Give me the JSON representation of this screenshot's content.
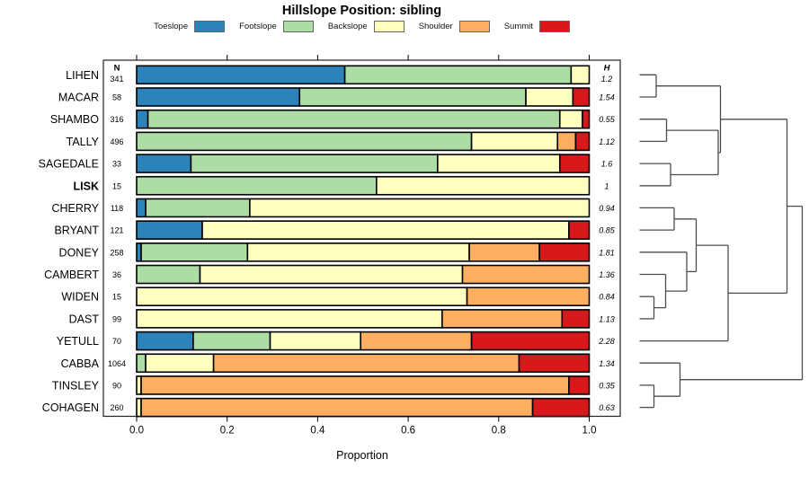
{
  "title": "Hillslope Position: sibling",
  "legend": {
    "items": [
      {
        "label": "Toeslope",
        "color": "#2B83BA"
      },
      {
        "label": "Footslope",
        "color": "#ABDDA4"
      },
      {
        "label": "Backslope",
        "color": "#FFFFBF"
      },
      {
        "label": "Shoulder",
        "color": "#FDAE61"
      },
      {
        "label": "Summit",
        "color": "#D7191C"
      }
    ]
  },
  "chart_data": {
    "type": "bar",
    "variant": "horizontal-stacked-proportion",
    "title": "Hillslope Position: sibling",
    "xlabel": "Proportion",
    "xlim": [
      0,
      1
    ],
    "xticks": [
      0,
      0.2,
      0.4,
      0.6,
      0.8,
      1.0
    ],
    "grid": false,
    "legend_position": "top",
    "n_header": "N",
    "h_header": "H",
    "positions": [
      "Toeslope",
      "Footslope",
      "Backslope",
      "Shoulder",
      "Summit"
    ],
    "colors": [
      "#2B83BA",
      "#ABDDA4",
      "#FFFFBF",
      "#FDAE61",
      "#D7191C"
    ],
    "rows": [
      {
        "name": "LIHEN",
        "bold": false,
        "n": "341",
        "h": "1.2",
        "values": [
          0.46,
          0.5,
          0.04,
          0,
          0
        ]
      },
      {
        "name": "MACAR",
        "bold": false,
        "n": "58",
        "h": "1.54",
        "values": [
          0.36,
          0.5,
          0.104,
          0,
          0.036
        ]
      },
      {
        "name": "SHAMBO",
        "bold": false,
        "n": "316",
        "h": "0.55",
        "values": [
          0.025,
          0.91,
          0.05,
          0,
          0.015
        ]
      },
      {
        "name": "TALLY",
        "bold": false,
        "n": "496",
        "h": "1.12",
        "values": [
          0,
          0.74,
          0.19,
          0.04,
          0.03
        ]
      },
      {
        "name": "SAGEDALE",
        "bold": false,
        "n": "33",
        "h": "1.6",
        "values": [
          0.12,
          0.545,
          0.27,
          0,
          0.065
        ]
      },
      {
        "name": "LISK",
        "bold": true,
        "n": "15",
        "h": "1",
        "values": [
          0,
          0.53,
          0.47,
          0,
          0
        ]
      },
      {
        "name": "CHERRY",
        "bold": false,
        "n": "118",
        "h": "0.94",
        "values": [
          0.02,
          0.23,
          0.75,
          0,
          0
        ]
      },
      {
        "name": "BRYANT",
        "bold": false,
        "n": "121",
        "h": "0.85",
        "values": [
          0.145,
          0,
          0.81,
          0,
          0.045
        ]
      },
      {
        "name": "DONEY",
        "bold": false,
        "n": "258",
        "h": "1.81",
        "values": [
          0.01,
          0.235,
          0.49,
          0.155,
          0.11
        ]
      },
      {
        "name": "CAMBERT",
        "bold": false,
        "n": "36",
        "h": "1.36",
        "values": [
          0,
          0.14,
          0.58,
          0.28,
          0
        ]
      },
      {
        "name": "WIDEN",
        "bold": false,
        "n": "15",
        "h": "0.84",
        "values": [
          0,
          0,
          0.73,
          0.27,
          0
        ]
      },
      {
        "name": "DAST",
        "bold": false,
        "n": "99",
        "h": "1.13",
        "values": [
          0,
          0,
          0.675,
          0.265,
          0.06
        ]
      },
      {
        "name": "YETULL",
        "bold": false,
        "n": "70",
        "h": "2.28",
        "values": [
          0.125,
          0.17,
          0.2,
          0.245,
          0.26
        ]
      },
      {
        "name": "CABBA",
        "bold": false,
        "n": "1064",
        "h": "1.34",
        "values": [
          0,
          0.02,
          0.15,
          0.675,
          0.155
        ]
      },
      {
        "name": "TINSLEY",
        "bold": false,
        "n": "90",
        "h": "0.35",
        "values": [
          0,
          0,
          0.01,
          0.945,
          0.045
        ]
      },
      {
        "name": "COHAGEN",
        "bold": false,
        "n": "260",
        "h": "0.63",
        "values": [
          0,
          0,
          0.01,
          0.865,
          0.125
        ]
      }
    ]
  },
  "dendrogram": {
    "line_color": "#4d4d4d",
    "segments": [
      [
        711.5,
        83.3,
        730,
        83.3
      ],
      [
        711.5,
        108,
        730,
        108
      ],
      [
        730,
        83.3,
        730,
        108
      ],
      [
        711.5,
        132.7,
        741.5,
        132.7
      ],
      [
        711.5,
        157.4,
        741.5,
        157.4
      ],
      [
        741.5,
        132.7,
        741.5,
        157.4
      ],
      [
        711.5,
        182.1,
        746,
        182.1
      ],
      [
        711.5,
        206.8,
        746,
        206.8
      ],
      [
        746,
        182.1,
        746,
        206.8
      ],
      [
        741.5,
        145.1,
        799,
        145.1
      ],
      [
        746,
        194.5,
        799,
        194.5
      ],
      [
        799,
        145.1,
        799,
        194.5
      ],
      [
        730,
        95.7,
        801.5,
        95.7
      ],
      [
        799,
        169.8,
        801.5,
        169.8
      ],
      [
        801.5,
        95.7,
        801.5,
        169.8
      ],
      [
        711.5,
        231.4,
        750,
        231.4
      ],
      [
        711.5,
        256.1,
        750,
        256.1
      ],
      [
        750,
        231.4,
        750,
        256.1
      ],
      [
        711.5,
        330.2,
        727.5,
        330.2
      ],
      [
        711.5,
        354.9,
        727.5,
        354.9
      ],
      [
        727.5,
        330.2,
        727.5,
        354.9
      ],
      [
        711.5,
        305.5,
        740.5,
        305.5
      ],
      [
        727.5,
        342.6,
        740.5,
        342.6
      ],
      [
        740.5,
        305.5,
        740.5,
        342.6
      ],
      [
        711.5,
        280.8,
        764,
        280.8
      ],
      [
        740.5,
        324.1,
        764,
        324.1
      ],
      [
        764,
        280.8,
        764,
        324.1
      ],
      [
        750,
        243.8,
        774.5,
        243.8
      ],
      [
        764,
        302.4,
        774.5,
        302.4
      ],
      [
        774.5,
        243.8,
        774.5,
        302.4
      ],
      [
        774.5,
        273.1,
        810,
        273.1
      ],
      [
        711.5,
        379.6,
        810,
        379.6
      ],
      [
        810,
        273.1,
        810,
        379.6
      ],
      [
        711.5,
        428.9,
        727.5,
        428.9
      ],
      [
        711.5,
        453.6,
        727.5,
        453.6
      ],
      [
        727.5,
        428.9,
        727.5,
        453.6
      ],
      [
        711.5,
        404.2,
        756.5,
        404.2
      ],
      [
        727.5,
        441.2,
        756.5,
        441.2
      ],
      [
        756.5,
        404.2,
        756.5,
        441.2
      ],
      [
        801.5,
        132.8,
        875.5,
        132.8
      ],
      [
        810,
        326.4,
        875.5,
        326.4
      ],
      [
        875.5,
        132.8,
        875.5,
        326.4
      ],
      [
        875.5,
        229.6,
        892.5,
        229.6
      ],
      [
        756.5,
        422.7,
        892.5,
        422.7
      ],
      [
        892.5,
        229.6,
        892.5,
        422.7
      ]
    ]
  }
}
